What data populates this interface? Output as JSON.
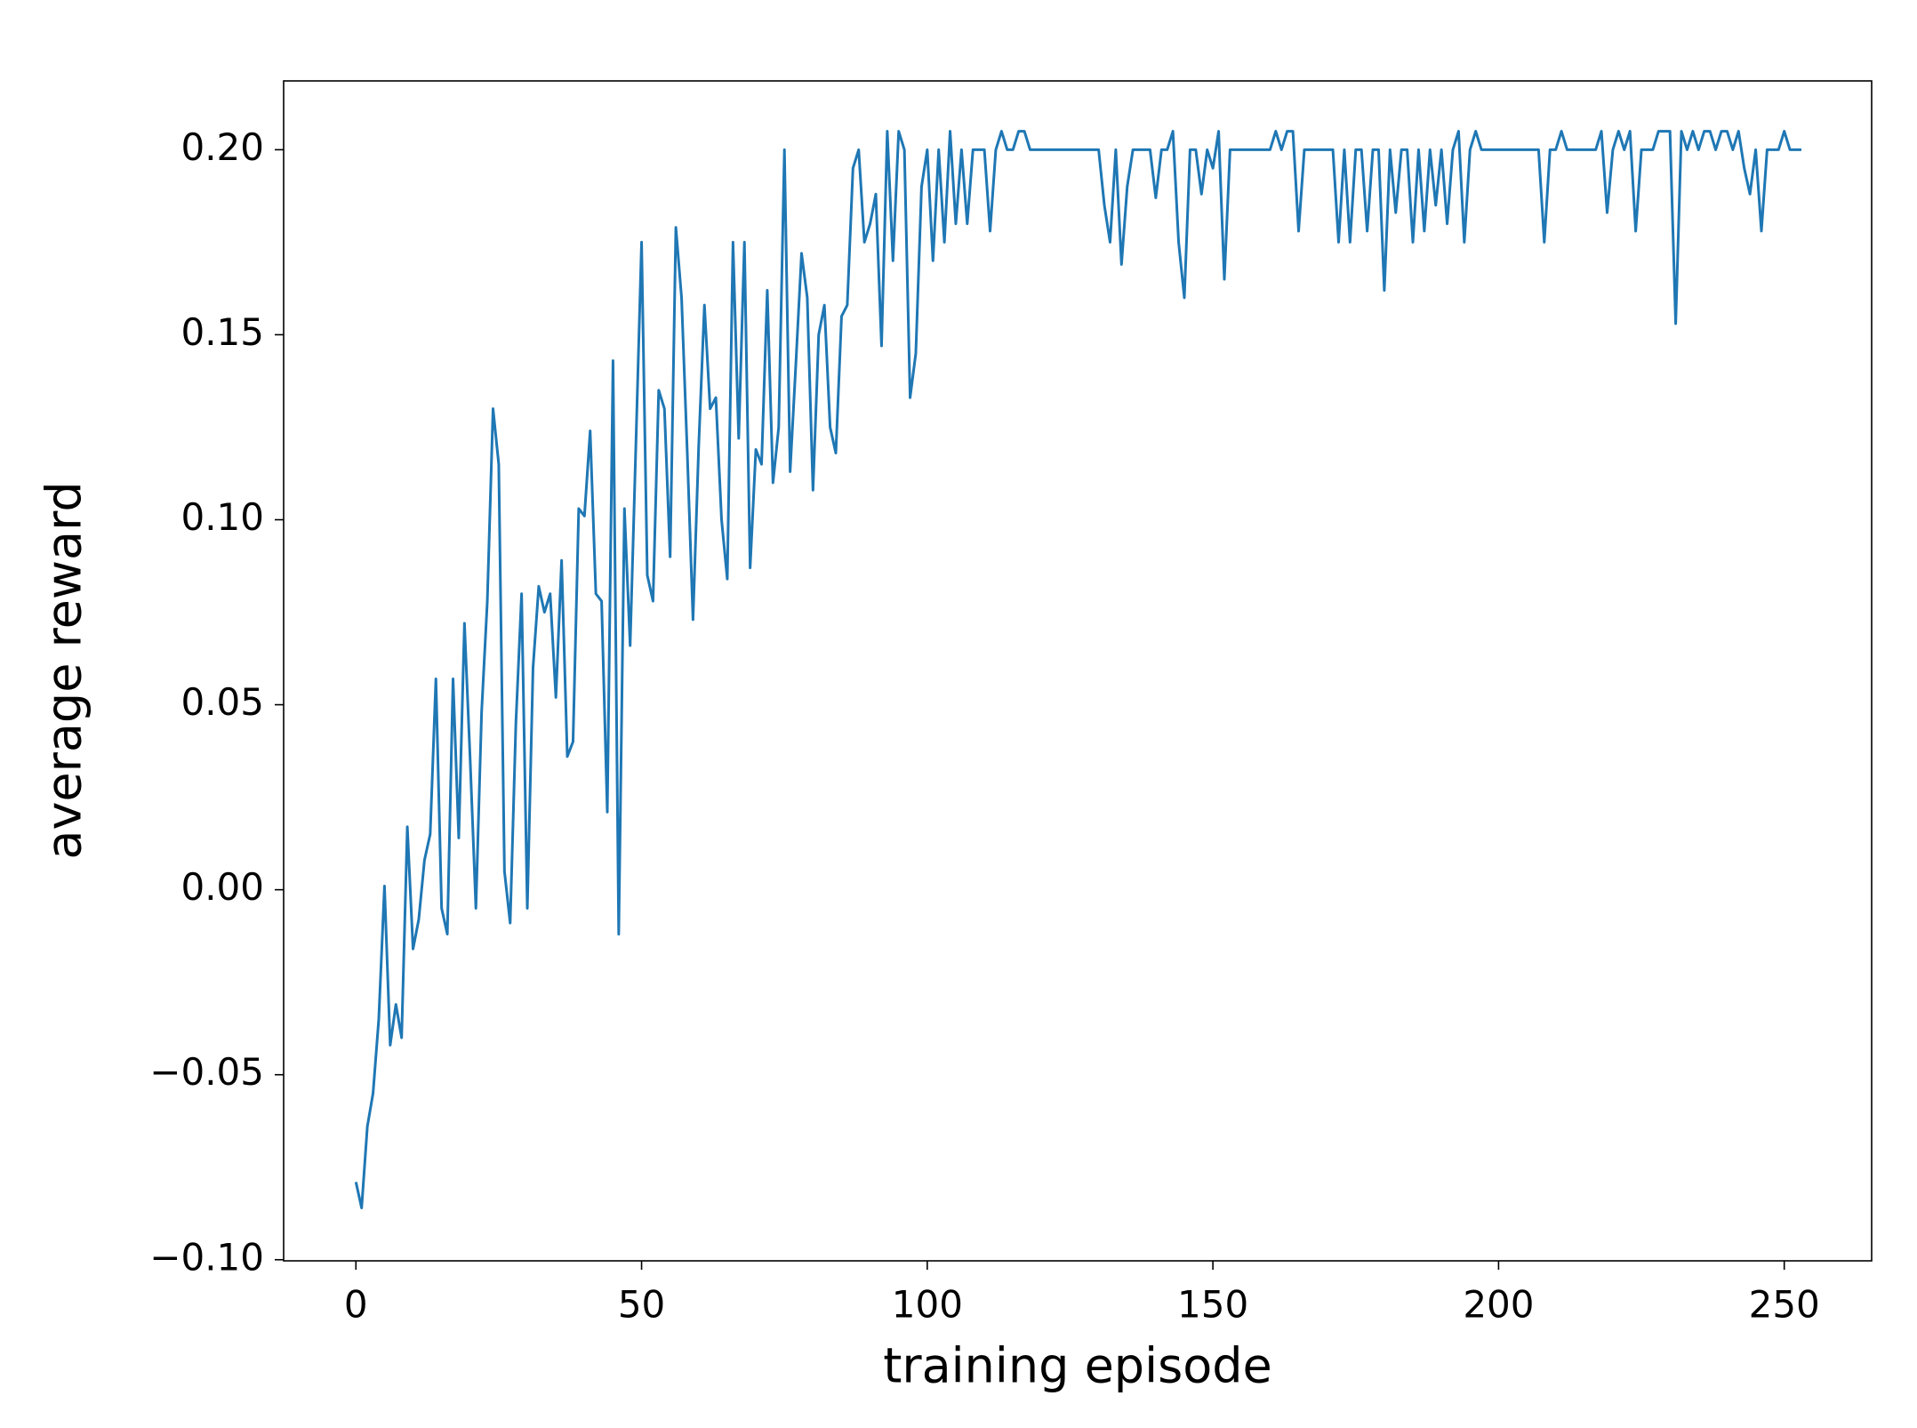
{
  "chart_data": {
    "type": "line",
    "x_label": "training episode",
    "y_label": "average reward",
    "x": [
      0,
      1,
      2,
      3,
      4,
      5,
      6,
      7,
      8,
      9,
      10,
      11,
      12,
      13,
      14,
      15,
      16,
      17,
      18,
      19,
      20,
      21,
      22,
      23,
      24,
      25,
      26,
      27,
      28,
      29,
      30,
      31,
      32,
      33,
      34,
      35,
      36,
      37,
      38,
      39,
      40,
      41,
      42,
      43,
      44,
      45,
      46,
      47,
      48,
      49,
      50,
      51,
      52,
      53,
      54,
      55,
      56,
      57,
      58,
      59,
      60,
      61,
      62,
      63,
      64,
      65,
      66,
      67,
      68,
      69,
      70,
      71,
      72,
      73,
      74,
      75,
      76,
      77,
      78,
      79,
      80,
      81,
      82,
      83,
      84,
      85,
      86,
      87,
      88,
      89,
      90,
      91,
      92,
      93,
      94,
      95,
      96,
      97,
      98,
      99,
      100,
      101,
      102,
      103,
      104,
      105,
      106,
      107,
      108,
      109,
      110,
      111,
      112,
      113,
      114,
      115,
      116,
      117,
      118,
      119,
      120,
      121,
      122,
      123,
      124,
      125,
      126,
      127,
      128,
      129,
      130,
      131,
      132,
      133,
      134,
      135,
      136,
      137,
      138,
      139,
      140,
      141,
      142,
      143,
      144,
      145,
      146,
      147,
      148,
      149,
      150,
      151,
      152,
      153,
      154,
      155,
      156,
      157,
      158,
      159,
      160,
      161,
      162,
      163,
      164,
      165,
      166,
      167,
      168,
      169,
      170,
      171,
      172,
      173,
      174,
      175,
      176,
      177,
      178,
      179,
      180,
      181,
      182,
      183,
      184,
      185,
      186,
      187,
      188,
      189,
      190,
      191,
      192,
      193,
      194,
      195,
      196,
      197,
      198,
      199,
      200,
      201,
      202,
      203,
      204,
      205,
      206,
      207,
      208,
      209,
      210,
      211,
      212,
      213,
      214,
      215,
      216,
      217,
      218,
      219,
      220,
      221,
      222,
      223,
      224,
      225,
      226,
      227,
      228,
      229,
      230,
      231,
      232,
      233,
      234,
      235,
      236,
      237,
      238,
      239,
      240,
      241,
      242,
      243,
      244,
      245,
      246,
      247,
      248,
      249,
      250,
      251,
      252,
      253
    ],
    "series": [
      {
        "color": "#1f77b4",
        "values": [
          -0.079,
          -0.086,
          -0.064,
          -0.055,
          -0.035,
          0.001,
          -0.042,
          -0.031,
          -0.04,
          0.017,
          -0.016,
          -0.008,
          0.008,
          0.015,
          0.057,
          -0.005,
          -0.012,
          0.057,
          0.014,
          0.072,
          0.035,
          -0.005,
          0.048,
          0.078,
          0.13,
          0.115,
          0.005,
          -0.009,
          0.045,
          0.08,
          -0.005,
          0.06,
          0.082,
          0.075,
          0.08,
          0.052,
          0.089,
          0.036,
          0.04,
          0.103,
          0.101,
          0.124,
          0.08,
          0.078,
          0.021,
          0.143,
          -0.012,
          0.103,
          0.066,
          0.12,
          0.175,
          0.085,
          0.078,
          0.135,
          0.13,
          0.09,
          0.179,
          0.16,
          0.118,
          0.073,
          0.12,
          0.158,
          0.13,
          0.133,
          0.1,
          0.084,
          0.175,
          0.122,
          0.175,
          0.087,
          0.119,
          0.115,
          0.162,
          0.11,
          0.125,
          0.2,
          0.113,
          0.142,
          0.172,
          0.16,
          0.108,
          0.15,
          0.158,
          0.125,
          0.118,
          0.155,
          0.158,
          0.195,
          0.2,
          0.175,
          0.18,
          0.188,
          0.147,
          0.205,
          0.17,
          0.205,
          0.2,
          0.133,
          0.145,
          0.19,
          0.2,
          0.17,
          0.2,
          0.175,
          0.205,
          0.18,
          0.2,
          0.18,
          0.2,
          0.2,
          0.2,
          0.178,
          0.2,
          0.205,
          0.2,
          0.2,
          0.205,
          0.205,
          0.2,
          0.2,
          0.2,
          0.2,
          0.2,
          0.2,
          0.2,
          0.2,
          0.2,
          0.2,
          0.2,
          0.2,
          0.2,
          0.185,
          0.175,
          0.2,
          0.169,
          0.19,
          0.2,
          0.2,
          0.2,
          0.2,
          0.187,
          0.2,
          0.2,
          0.205,
          0.175,
          0.16,
          0.2,
          0.2,
          0.188,
          0.2,
          0.195,
          0.205,
          0.165,
          0.2,
          0.2,
          0.2,
          0.2,
          0.2,
          0.2,
          0.2,
          0.2,
          0.205,
          0.2,
          0.205,
          0.205,
          0.178,
          0.2,
          0.2,
          0.2,
          0.2,
          0.2,
          0.2,
          0.175,
          0.2,
          0.175,
          0.2,
          0.2,
          0.178,
          0.2,
          0.2,
          0.162,
          0.2,
          0.183,
          0.2,
          0.2,
          0.175,
          0.2,
          0.178,
          0.2,
          0.185,
          0.2,
          0.18,
          0.2,
          0.205,
          0.175,
          0.2,
          0.205,
          0.2,
          0.2,
          0.2,
          0.2,
          0.2,
          0.2,
          0.2,
          0.2,
          0.2,
          0.2,
          0.2,
          0.175,
          0.2,
          0.2,
          0.205,
          0.2,
          0.2,
          0.2,
          0.2,
          0.2,
          0.2,
          0.205,
          0.183,
          0.2,
          0.205,
          0.2,
          0.205,
          0.178,
          0.2,
          0.2,
          0.2,
          0.205,
          0.205,
          0.205,
          0.153,
          0.205,
          0.2,
          0.205,
          0.2,
          0.205,
          0.205,
          0.2,
          0.205,
          0.205,
          0.2,
          0.205,
          0.195,
          0.188,
          0.2,
          0.178,
          0.2,
          0.2,
          0.2,
          0.205,
          0.2,
          0.2,
          0.2
        ]
      }
    ],
    "xlim": [
      -12.65,
      265.3
    ],
    "ylim": [
      -0.1003,
      0.2186
    ],
    "xticks": [
      0,
      50,
      100,
      150,
      200,
      250
    ],
    "yticks": [
      {
        "value": -0.1,
        "label": "−0.10"
      },
      {
        "value": -0.05,
        "label": "−0.05"
      },
      {
        "value": 0,
        "label": "0.00"
      },
      {
        "value": 0.05,
        "label": "0.05"
      },
      {
        "value": 0.1,
        "label": "0.10"
      },
      {
        "value": 0.15,
        "label": "0.15"
      },
      {
        "value": 0.2,
        "label": "0.20"
      }
    ],
    "grid": false
  }
}
